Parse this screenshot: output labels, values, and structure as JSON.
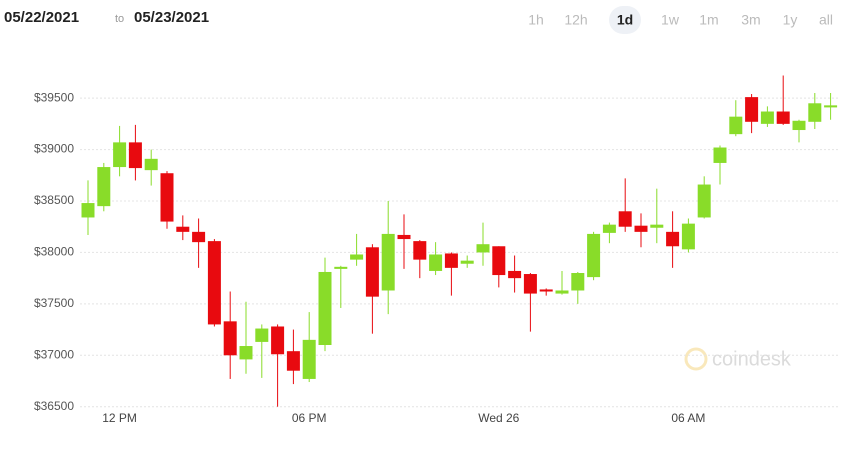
{
  "header": {
    "from": "05/22/2021",
    "to_word": "to",
    "to": "05/23/2021",
    "ranges": [
      "1h",
      "12h",
      "1d",
      "1w",
      "1m",
      "3m",
      "1y",
      "all"
    ],
    "selected_range": "1d",
    "watermark": "coindesk"
  },
  "chart_data": {
    "type": "candlestick",
    "categories": [
      null,
      null,
      "12 PM",
      null,
      null,
      null,
      null,
      null,
      null,
      null,
      null,
      null,
      null,
      null,
      "06 PM",
      null,
      null,
      null,
      null,
      null,
      null,
      null,
      null,
      null,
      null,
      null,
      "Wed 26",
      null,
      null,
      null,
      null,
      null,
      null,
      null,
      null,
      null,
      null,
      null,
      "06 AM",
      null,
      null,
      null,
      null,
      null,
      null,
      null,
      null,
      null
    ],
    "open": [
      38340,
      38450,
      38830,
      39070,
      38800,
      38770,
      38250,
      38200,
      38110,
      37330,
      36960,
      37130,
      37280,
      37040,
      36770,
      37100,
      37840,
      37930,
      38050,
      37630,
      38170,
      38110,
      37820,
      37990,
      37890,
      38000,
      38060,
      37820,
      37790,
      37640,
      37600,
      37630,
      37760,
      38190,
      38400,
      38260,
      38240,
      38200,
      38030,
      38340,
      38870,
      39150,
      39510,
      39250,
      39370,
      39190,
      39270,
      39410
    ],
    "high": [
      38700,
      38870,
      39230,
      39240,
      39000,
      38790,
      38360,
      38330,
      38130,
      37620,
      37520,
      37300,
      37300,
      37250,
      37420,
      37950,
      37870,
      38180,
      38080,
      38500,
      38370,
      38120,
      38100,
      38000,
      37970,
      38290,
      38060,
      37970,
      37800,
      37650,
      37820,
      37810,
      38200,
      38290,
      38720,
      38380,
      38620,
      38400,
      38330,
      38740,
      39040,
      39480,
      39540,
      39420,
      39720,
      39290,
      39550,
      39550
    ],
    "low": [
      38170,
      38400,
      38740,
      38700,
      38650,
      38230,
      38120,
      37850,
      37280,
      36770,
      36820,
      36780,
      36500,
      36720,
      36740,
      37040,
      37460,
      37870,
      37210,
      37400,
      37840,
      37750,
      37780,
      37580,
      37850,
      37870,
      37660,
      37610,
      37230,
      37580,
      37590,
      37500,
      37730,
      38090,
      38200,
      38050,
      38090,
      37850,
      38000,
      38330,
      38660,
      39130,
      39160,
      39220,
      39240,
      39070,
      39200,
      39290
    ],
    "close": [
      38480,
      38830,
      39070,
      38820,
      38910,
      38300,
      38200,
      38100,
      37300,
      37000,
      37090,
      37260,
      37010,
      36850,
      37150,
      37810,
      37860,
      37980,
      37570,
      38180,
      38130,
      37930,
      37980,
      37850,
      37920,
      38080,
      37780,
      37750,
      37600,
      37620,
      37630,
      37800,
      38180,
      38270,
      38250,
      38200,
      38270,
      38060,
      38280,
      38660,
      39020,
      39320,
      39270,
      39370,
      39250,
      39280,
      39450,
      39430
    ],
    "up_color": "#89dc29",
    "down_color": "#e80a0f",
    "ylim": [
      36400,
      39900
    ],
    "yticks": [
      {
        "value": 36500,
        "label": "$36500"
      },
      {
        "value": 37000,
        "label": "$37000"
      },
      {
        "value": 37500,
        "label": "$37500"
      },
      {
        "value": 38000,
        "label": "$38000"
      },
      {
        "value": 38500,
        "label": "$38500"
      },
      {
        "value": 39000,
        "label": "$39000"
      },
      {
        "value": 39500,
        "label": "$39500"
      }
    ],
    "grid": true
  }
}
